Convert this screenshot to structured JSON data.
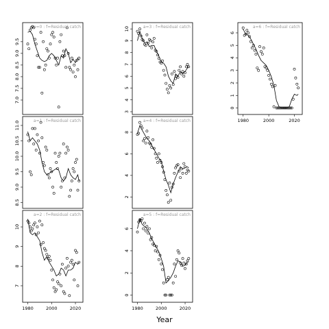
{
  "chart_data": {
    "type": "scatter",
    "xlabel": "Year",
    "x_ticks": [
      1980,
      2000,
      2020
    ],
    "xlim": [
      1978,
      2024
    ],
    "panels": [
      {
        "title": "a=0 : f=Residual catch",
        "ylim": [
          6.5,
          10.2
        ],
        "y_ticks": [
          7.0,
          7.5,
          8.0,
          8.5,
          9.0,
          9.5
        ],
        "y_tick_labels": [
          "7.0",
          "7.5",
          "8.0",
          "8.5",
          "9.0",
          "9.5"
        ],
        "points_x": [
          1980,
          1981,
          1982,
          1983,
          1984,
          1985,
          1986,
          1987,
          1988,
          1989,
          1990,
          1991,
          1992,
          1993,
          1994,
          1995,
          1996,
          1997,
          1998,
          1999,
          2000,
          2001,
          2002,
          2003,
          2004,
          2005,
          2006,
          2007,
          2008,
          2009,
          2010,
          2011,
          2012,
          2013,
          2014,
          2015,
          2016,
          2017,
          2018,
          2019,
          2020,
          2021,
          2022,
          2023
        ],
        "points_y": [
          9.4,
          9.2,
          10.0,
          10.1,
          10.15,
          10.1,
          9.6,
          9.4,
          8.9,
          8.4,
          8.4,
          9.9,
          7.3,
          9.5,
          8.3,
          8.5,
          9.2,
          9.1,
          8.8,
          9.4,
          9.8,
          9.9,
          9.7,
          8.8,
          8.5,
          8.8,
          6.7,
          9.5,
          9.8,
          8.9,
          9.1,
          8.9,
          8.4,
          10.1,
          9.0,
          8.4,
          8.3,
          8.8,
          8.2,
          8.5,
          8.0,
          8.7,
          8.3,
          8.8
        ],
        "line_x": [
          1980,
          1982,
          1984,
          1986,
          1988,
          1990,
          1992,
          1994,
          1996,
          1998,
          2000,
          2002,
          2004,
          2006,
          2008,
          2010,
          2012,
          2014,
          2016,
          2018,
          2020,
          2022,
          2023
        ],
        "line_y": [
          9.9,
          9.95,
          9.8,
          9.4,
          9.1,
          8.8,
          8.7,
          8.65,
          8.7,
          8.9,
          9.0,
          8.9,
          8.7,
          8.5,
          8.9,
          8.8,
          9.2,
          9.0,
          8.6,
          8.75,
          8.6,
          8.8,
          8.7
        ]
      },
      {
        "title": "a=1 : f=Residual catch",
        "ylim": [
          8.4,
          11.2
        ],
        "y_ticks": [
          8.5,
          9.0,
          9.5,
          10.0,
          10.5,
          11.0
        ],
        "y_tick_labels": [
          "8.5",
          "9.0",
          "9.5",
          "10.0",
          "10.5",
          "11.0"
        ],
        "points_x": [
          1980,
          1981,
          1982,
          1983,
          1984,
          1985,
          1986,
          1987,
          1988,
          1989,
          1990,
          1991,
          1992,
          1993,
          1994,
          1995,
          1996,
          1997,
          1998,
          1999,
          2000,
          2001,
          2002,
          2003,
          2004,
          2005,
          2006,
          2007,
          2008,
          2009,
          2010,
          2011,
          2012,
          2013,
          2014,
          2015,
          2016,
          2017,
          2018,
          2019,
          2020,
          2021,
          2022,
          2023
        ],
        "points_y": [
          10.7,
          10.5,
          9.5,
          9.4,
          10.9,
          10.4,
          10.9,
          10.2,
          10.7,
          10.5,
          10.1,
          11.1,
          10.6,
          9.8,
          9.7,
          10.3,
          10.2,
          9.4,
          9.3,
          9.6,
          9.5,
          9.0,
          8.8,
          10.1,
          9.8,
          9.6,
          10.0,
          10.1,
          9.0,
          9.2,
          10.4,
          9.3,
          10.1,
          10.3,
          10.2,
          8.7,
          8.9,
          9.2,
          9.6,
          9.5,
          9.8,
          9.9,
          8.9,
          9.2
        ],
        "line_x": [
          1980,
          1982,
          1984,
          1986,
          1988,
          1990,
          1992,
          1994,
          1996,
          1998,
          2000,
          2002,
          2004,
          2006,
          2008,
          2010,
          2012,
          2014,
          2016,
          2018,
          2020,
          2022,
          2023
        ],
        "line_y": [
          10.8,
          10.5,
          10.6,
          10.5,
          10.4,
          10.2,
          9.8,
          9.5,
          9.4,
          9.45,
          9.5,
          9.55,
          9.6,
          9.55,
          9.3,
          9.2,
          9.3,
          9.6,
          9.4,
          9.3,
          9.25,
          9.4,
          9.2
        ]
      },
      {
        "title": "a=2 : f=Residual catch",
        "ylim": [
          6.3,
          10.7
        ],
        "y_ticks": [
          7,
          8,
          9,
          10
        ],
        "y_tick_labels": [
          "7",
          "8",
          "9",
          "10"
        ],
        "points_x": [
          1980,
          1981,
          1982,
          1983,
          1984,
          1985,
          1986,
          1987,
          1988,
          1989,
          1990,
          1991,
          1992,
          1993,
          1994,
          1995,
          1996,
          1997,
          1998,
          1999,
          2000,
          2001,
          2002,
          2003,
          2004,
          2005,
          2006,
          2007,
          2008,
          2009,
          2010,
          2011,
          2012,
          2013,
          2014,
          2015,
          2016,
          2017,
          2018,
          2019,
          2020,
          2021,
          2022,
          2023
        ],
        "points_y": [
          10.3,
          10.2,
          10.0,
          9.8,
          9.9,
          10.1,
          10.2,
          9.6,
          10.0,
          9.7,
          10.3,
          9.1,
          10.1,
          9.2,
          8.9,
          8.8,
          8.6,
          8.4,
          8.5,
          8.3,
          7.8,
          7.3,
          6.9,
          6.7,
          6.8,
          7.2,
          7.1,
          7.6,
          7.0,
          8.1,
          6.7,
          6.6,
          7.9,
          8.4,
          8.0,
          6.5,
          8.2,
          8.3,
          8.1,
          7.3,
          8.8,
          8.7,
          7.0,
          8.2
        ],
        "line_x": [
          1980,
          1982,
          1984,
          1986,
          1988,
          1990,
          1992,
          1994,
          1996,
          1998,
          2000,
          2002,
          2004,
          2006,
          2008,
          2010,
          2012,
          2014,
          2016,
          2018,
          2020,
          2022,
          2023
        ],
        "line_y": [
          10.4,
          9.7,
          9.6,
          9.7,
          9.5,
          9.3,
          8.7,
          8.3,
          8.5,
          8.2,
          8.0,
          7.8,
          7.5,
          7.6,
          7.9,
          7.8,
          7.5,
          7.8,
          7.8,
          7.9,
          8.2,
          8.1,
          8.2
        ]
      },
      {
        "title": "a=3 : f=Residual catch",
        "ylim": [
          3.0,
          10.3
        ],
        "y_ticks": [
          3,
          4,
          5,
          6,
          7,
          8,
          9,
          10
        ],
        "y_tick_labels": [
          "3",
          "4",
          "5",
          "6",
          "7",
          "8",
          "9",
          "10"
        ],
        "points_x": [
          1980,
          1981,
          1982,
          1983,
          1984,
          1985,
          1986,
          1987,
          1988,
          1989,
          1990,
          1991,
          1992,
          1993,
          1994,
          1995,
          1996,
          1997,
          1998,
          1999,
          2000,
          2001,
          2002,
          2003,
          2004,
          2005,
          2006,
          2007,
          2008,
          2009,
          2010,
          2011,
          2012,
          2013,
          2014,
          2015,
          2016,
          2017,
          2018,
          2019,
          2020,
          2021,
          2022,
          2023
        ],
        "points_y": [
          9.8,
          9.6,
          10.0,
          9.4,
          9.1,
          9.0,
          8.7,
          8.6,
          9.5,
          8.8,
          9.1,
          9.0,
          8.4,
          8.9,
          9.2,
          8.2,
          8.1,
          7.8,
          7.5,
          7.2,
          7.1,
          7.3,
          6.5,
          6.1,
          5.4,
          4.9,
          4.6,
          5.2,
          5.0,
          6.2,
          5.3,
          6.4,
          5.8,
          6.0,
          5.9,
          6.5,
          6.8,
          6.2,
          6.4,
          6.0,
          6.3,
          6.8,
          7.0,
          6.8
        ],
        "line_x": [
          1980,
          1982,
          1984,
          1986,
          1988,
          1990,
          1992,
          1994,
          1996,
          1998,
          2000,
          2002,
          2004,
          2006,
          2008,
          2010,
          2012,
          2014,
          2016,
          2018,
          2020,
          2022,
          2023
        ],
        "line_y": [
          9.0,
          9.8,
          9.2,
          8.8,
          8.9,
          8.5,
          8.6,
          8.6,
          8.1,
          7.7,
          7.2,
          7.1,
          6.8,
          6.0,
          5.6,
          5.4,
          6.2,
          6.0,
          6.4,
          6.2,
          6.4,
          6.7,
          6.8
        ]
      },
      {
        "title": "a=4 : f=Residual catch",
        "ylim": [
          1.2,
          9.2
        ],
        "y_ticks": [
          2,
          4,
          6,
          8
        ],
        "y_tick_labels": [
          "2",
          "4",
          "6",
          "8"
        ],
        "points_x": [
          1980,
          1981,
          1982,
          1983,
          1984,
          1985,
          1986,
          1987,
          1988,
          1989,
          1990,
          1991,
          1992,
          1993,
          1994,
          1995,
          1996,
          1997,
          1998,
          1999,
          2000,
          2001,
          2002,
          2003,
          2004,
          2005,
          2006,
          2007,
          2008,
          2009,
          2010,
          2011,
          2012,
          2013,
          2014,
          2015,
          2016,
          2017,
          2018,
          2019,
          2020,
          2021,
          2022,
          2023
        ],
        "points_y": [
          7.8,
          7.9,
          8.9,
          8.6,
          8.4,
          7.2,
          7.4,
          7.0,
          8.1,
          7.5,
          7.0,
          6.9,
          6.6,
          7.3,
          6.5,
          6.0,
          5.6,
          5.2,
          6.0,
          5.4,
          5.2,
          4.8,
          4.3,
          3.6,
          2.6,
          2.2,
          1.5,
          3.3,
          1.7,
          2.9,
          3.2,
          4.2,
          4.7,
          4.9,
          5.0,
          4.4,
          3.8,
          4.6,
          4.2,
          5.1,
          4.8,
          4.2,
          4.5,
          4.4
        ],
        "line_x": [
          1980,
          1982,
          1984,
          1986,
          1988,
          1990,
          1992,
          1994,
          1996,
          1998,
          2000,
          2002,
          2004,
          2006,
          2008,
          2010,
          2012,
          2014,
          2016,
          2018,
          2020,
          2022,
          2023
        ],
        "line_y": [
          7.9,
          8.6,
          8.2,
          7.8,
          7.4,
          7.2,
          6.8,
          6.4,
          6.0,
          5.6,
          5.3,
          4.4,
          3.6,
          3.1,
          2.4,
          3.2,
          3.8,
          4.3,
          4.8,
          4.6,
          4.7,
          4.8,
          4.7
        ]
      },
      {
        "title": "a=5 : f=Residual catch",
        "ylim": [
          -0.4,
          7.4
        ],
        "y_ticks": [
          0,
          2,
          4,
          6
        ],
        "y_tick_labels": [
          "0",
          "2",
          "4",
          "6"
        ],
        "points_x": [
          1980,
          1981,
          1982,
          1983,
          1984,
          1985,
          1986,
          1987,
          1988,
          1989,
          1990,
          1991,
          1992,
          1993,
          1994,
          1995,
          1996,
          1997,
          1998,
          1999,
          2000,
          2001,
          2002,
          2003,
          2004,
          2005,
          2006,
          2007,
          2008,
          2009,
          2010,
          2011,
          2012,
          2013,
          2014,
          2015,
          2016,
          2017,
          2018,
          2019,
          2020,
          2021,
          2022,
          2023
        ],
        "points_y": [
          5.7,
          6.6,
          6.8,
          6.7,
          6.9,
          6.0,
          6.5,
          5.8,
          6.2,
          5.6,
          6.0,
          5.0,
          5.2,
          4.6,
          4.5,
          4.0,
          4.4,
          3.9,
          3.2,
          3.6,
          2.8,
          2.3,
          1.1,
          0.0,
          0.0,
          1.4,
          1.6,
          0.0,
          0.0,
          0.0,
          1.1,
          2.8,
          1.7,
          3.2,
          4.0,
          3.8,
          2.9,
          2.7,
          3.3,
          2.9,
          2.4,
          2.8,
          3.1,
          3.3
        ],
        "line_x": [
          1980,
          1982,
          1984,
          1986,
          1988,
          1990,
          1992,
          1994,
          1996,
          1998,
          2000,
          2002,
          2004,
          2006,
          2008,
          2010,
          2012,
          2014,
          2016,
          2018,
          2020,
          2022,
          2023
        ],
        "line_y": [
          6.0,
          6.9,
          6.4,
          6.2,
          6.0,
          5.6,
          5.1,
          4.7,
          4.3,
          3.9,
          3.3,
          2.6,
          1.1,
          1.3,
          1.6,
          2.0,
          2.6,
          3.1,
          3.0,
          2.6,
          2.7,
          3.0,
          3.0
        ]
      },
      {
        "title": "a=6 : f=Residual catch",
        "ylim": [
          -0.3,
          6.6
        ],
        "y_ticks": [
          0,
          1,
          2,
          3,
          4,
          5,
          6
        ],
        "y_tick_labels": [
          "0",
          "1",
          "2",
          "3",
          "4",
          "5",
          "6"
        ],
        "points_x": [
          1980,
          1981,
          1982,
          1983,
          1984,
          1985,
          1986,
          1987,
          1988,
          1989,
          1990,
          1991,
          1992,
          1993,
          1994,
          1995,
          1996,
          1997,
          1998,
          1999,
          2000,
          2001,
          2002,
          2003,
          2004,
          2005,
          2006,
          2007,
          2008,
          2009,
          2010,
          2011,
          2012,
          2013,
          2014,
          2015,
          2016,
          2017,
          2018,
          2019,
          2020,
          2021,
          2022,
          2023
        ],
        "points_y": [
          6.4,
          5.8,
          5.9,
          6.2,
          6.0,
          5.7,
          5.3,
          4.8,
          5.0,
          4.6,
          4.3,
          3.2,
          3.0,
          4.9,
          4.5,
          4.3,
          4.8,
          3.3,
          3.2,
          3.0,
          2.6,
          2.3,
          1.9,
          1.7,
          0.1,
          1.8,
          0.0,
          0.0,
          0.0,
          0.0,
          0.0,
          0.0,
          0.0,
          0.0,
          0.0,
          0.0,
          0.0,
          0.0,
          0.0,
          0.7,
          3.1,
          2.4,
          1.9,
          1.6
        ],
        "line_x": [
          1980,
          1982,
          1984,
          1986,
          1988,
          1990,
          1992,
          1994,
          1996,
          1998,
          2000,
          2002,
          2004,
          2006,
          2008,
          2010,
          2012,
          2014,
          2016,
          2018,
          2020,
          2022,
          2023
        ],
        "line_y": [
          6.3,
          5.9,
          5.8,
          5.5,
          5.1,
          4.7,
          4.2,
          3.8,
          3.6,
          3.4,
          3.0,
          2.5,
          1.8,
          0.6,
          0.1,
          0.0,
          0.0,
          0.0,
          0.1,
          0.7,
          1.1,
          1.0,
          1.1
        ]
      }
    ]
  }
}
